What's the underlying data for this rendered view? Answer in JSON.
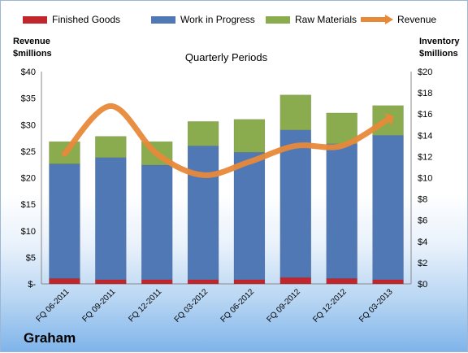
{
  "chart_data": {
    "type": "bar",
    "stacked": true,
    "title": "Quarterly Periods",
    "company": "Graham",
    "categories": [
      "FQ 06-2011",
      "FQ 09-2011",
      "FQ 12-2011",
      "FQ 03-2012",
      "FQ 06-2012",
      "FQ 09-2012",
      "FQ 12-2012",
      "FQ 03-2013"
    ],
    "left_axis": {
      "label_line1": "Revenue",
      "label_line2": "$millions",
      "ticks": [
        "$-",
        "$5",
        "$10",
        "$15",
        "$20",
        "$25",
        "$30",
        "$35",
        "$40"
      ],
      "ylim": [
        0,
        40
      ]
    },
    "right_axis": {
      "label_line1": "Inventory",
      "label_line2": "$millions",
      "ticks": [
        "$0",
        "$2",
        "$4",
        "$6",
        "$8",
        "$10",
        "$12",
        "$14",
        "$16",
        "$18",
        "$20"
      ],
      "ylim": [
        0,
        20
      ]
    },
    "series": [
      {
        "name": "Finished Goods",
        "axis": "right",
        "color": "#c0262c",
        "values": [
          0.5,
          0.4,
          0.4,
          0.4,
          0.4,
          0.6,
          0.5,
          0.4
        ]
      },
      {
        "name": "Work in Progress",
        "axis": "right",
        "color": "#4f78b4",
        "values": [
          10.8,
          11.5,
          10.8,
          12.6,
          12.0,
          13.9,
          12.7,
          13.6
        ]
      },
      {
        "name": "Raw Materials",
        "axis": "right",
        "color": "#8aab4e",
        "values": [
          2.1,
          2.0,
          2.2,
          2.3,
          3.1,
          3.3,
          2.9,
          2.8
        ]
      },
      {
        "name": "Revenue",
        "axis": "left",
        "color": "#e8893a",
        "type": "line",
        "values": [
          24.5,
          33.5,
          24.5,
          20.5,
          23.0,
          26.0,
          26.0,
          31.0
        ]
      }
    ],
    "grid": false,
    "legend": "top"
  }
}
